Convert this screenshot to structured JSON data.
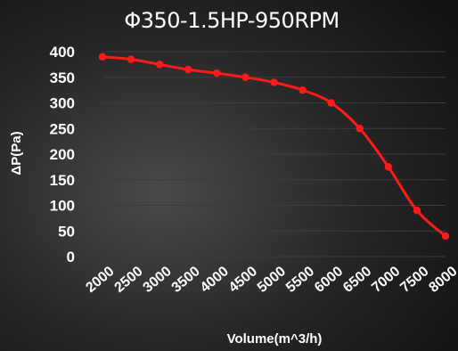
{
  "chart_data": {
    "type": "line",
    "title": "Φ350-1.5HP-950RPM",
    "xlabel": "Volume(m^3/h)",
    "ylabel": "ΔP(Pa)",
    "categories": [
      "2000",
      "2500",
      "3000",
      "3500",
      "4000",
      "4500",
      "5000",
      "5500",
      "6000",
      "6500",
      "7000",
      "7500",
      "8000"
    ],
    "x": [
      2000,
      2500,
      3000,
      3500,
      4000,
      4500,
      5000,
      5500,
      6000,
      6500,
      7000,
      7500,
      8000
    ],
    "series": [
      {
        "values": [
          390,
          385,
          375,
          365,
          358,
          350,
          340,
          325,
          300,
          250,
          175,
          90,
          40
        ],
        "color": "#ff1a1a"
      }
    ],
    "ylim": [
      0,
      400
    ],
    "yticks": [
      0,
      50,
      100,
      150,
      200,
      250,
      300,
      350,
      400
    ],
    "grid": true,
    "legend": "none"
  }
}
